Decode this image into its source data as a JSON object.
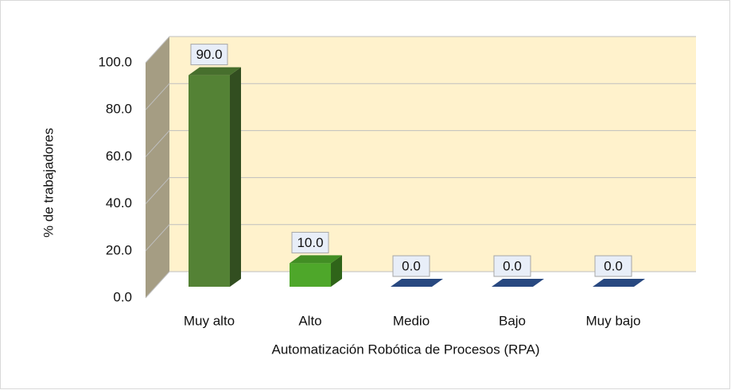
{
  "chart_data": {
    "type": "bar3d",
    "x_label": "Automatización Robótica de Procesos (RPA)",
    "y_label": "% de trabajadores",
    "categories": [
      "Muy alto",
      "Alto",
      "Medio",
      "Bajo",
      "Muy bajo"
    ],
    "values": [
      90,
      10,
      0,
      0,
      0
    ],
    "value_labels": [
      "90.0",
      "10.0",
      "0.0",
      "0.0",
      "0.0"
    ],
    "colors": [
      "#548235",
      "#4ea72a",
      "#2f5597",
      "#2f5597",
      "#2f5597"
    ],
    "ylim": [
      0,
      100
    ],
    "yticks": [
      {
        "value": 0,
        "label": "0.0"
      },
      {
        "value": 20,
        "label": "20.0"
      },
      {
        "value": 40,
        "label": "40.0"
      },
      {
        "value": 60,
        "label": "60.0"
      },
      {
        "value": 80,
        "label": "80.0"
      },
      {
        "value": 100,
        "label": "100.0"
      }
    ],
    "grid": true
  }
}
